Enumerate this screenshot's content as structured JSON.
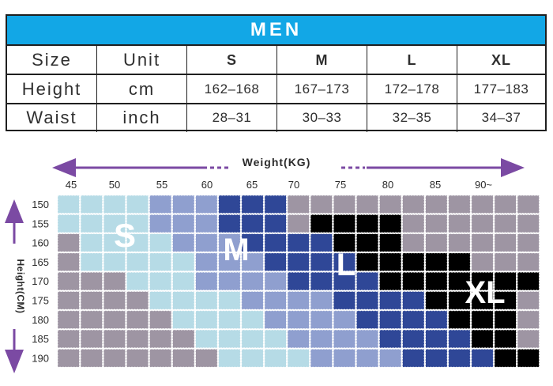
{
  "size_table": {
    "title": "MEN",
    "header": [
      "Size",
      "Unit",
      "S",
      "M",
      "L",
      "XL"
    ],
    "rows": [
      [
        "Height",
        "cm",
        "162–168",
        "167–173",
        "172–178",
        "177–183"
      ],
      [
        "Waist",
        "inch",
        "28–31",
        "30–33",
        "32–35",
        "34–37"
      ]
    ]
  },
  "chart_data": {
    "type": "heatmap",
    "xlabel": "Weight(KG)",
    "ylabel": "Height(CM)",
    "x_ticks": [
      "45",
      "50",
      "55",
      "60",
      "65",
      "70",
      "75",
      "80",
      "85",
      "90~"
    ],
    "y_ticks": [
      "150",
      "155",
      "160",
      "165",
      "170",
      "175",
      "180",
      "185",
      "190"
    ],
    "size_labels": [
      "S",
      "M",
      "L",
      "XL"
    ],
    "colors": {
      "N": "#9e95a3",
      "S": "#b6dbe6",
      "M": "#8f9fcf",
      "L": "#2f4797",
      "XL": "#0db0ee"
    },
    "grid": [
      "SSSSMMMLLLNNNNNNNNNNN",
      "SSSSMMMLLLNXXXXNNNNNN",
      "NSSSSMMMLLLLXXXNNNNNN",
      "NSSSSSMMMLLLLXXXXXNNN",
      "NNNSSSMMMMLLLLXXXXXXX",
      "NNNNSSSSMMMMLLLLXXXXN",
      "NNNNNSSSSMMMMLLLLXXXN",
      "NNNNNNSSSSMMMMLLLLXXN",
      "NNNNNNNSSSSMMMMLLLLXX"
    ]
  }
}
